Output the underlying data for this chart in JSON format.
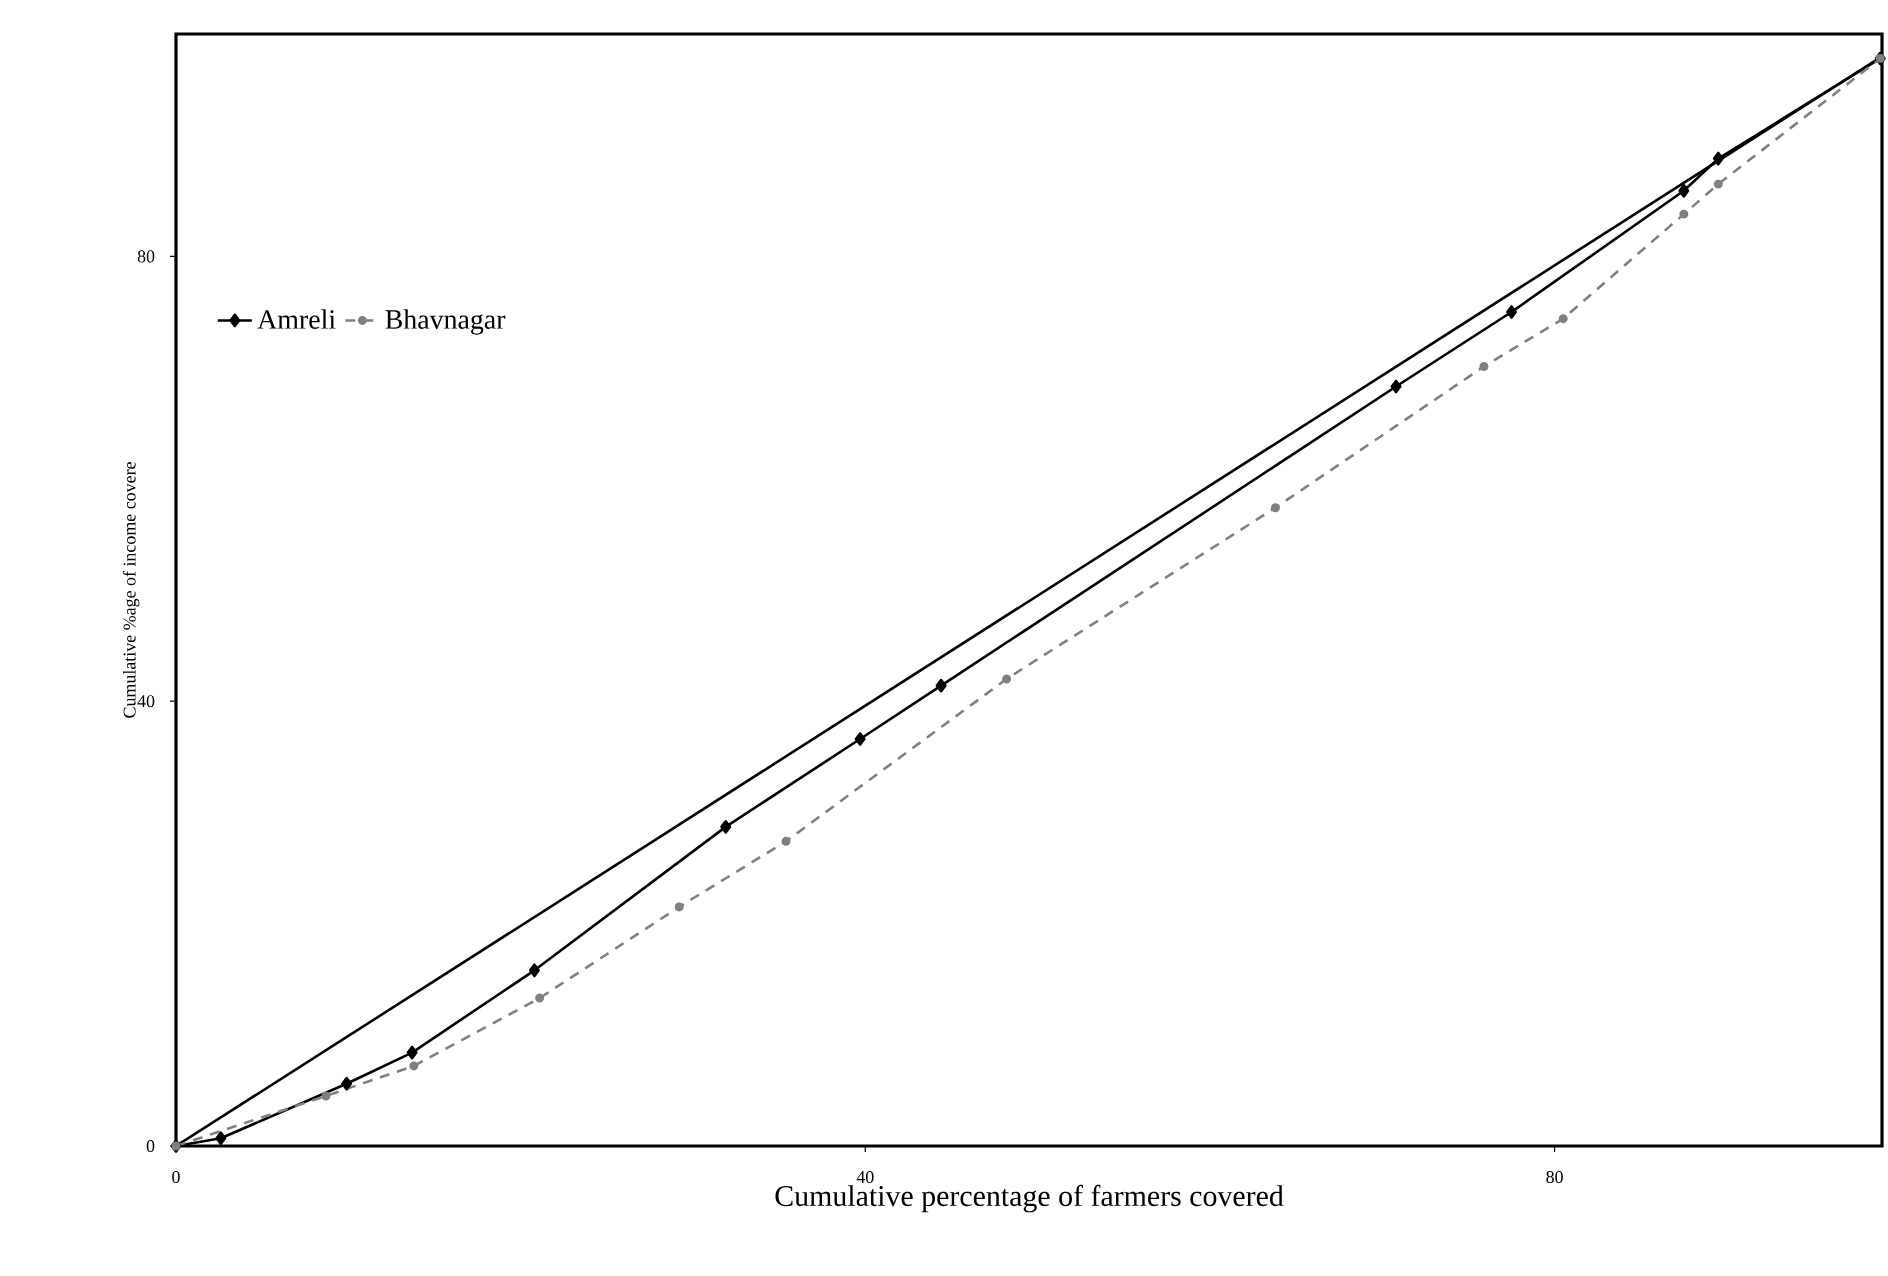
{
  "chart_data": {
    "type": "line",
    "xlabel": "Cumulative percentage of farmers covered",
    "ylabel": "Cumulative %age of income covere",
    "xlim": [
      0,
      99
    ],
    "ylim": [
      0,
      100
    ],
    "xticks": [
      0,
      40,
      80
    ],
    "yticks": [
      0,
      40,
      80
    ],
    "grid": false,
    "legend": "top left",
    "series": [
      {
        "color": "#000000",
        "line_style": "solid",
        "x": [
          0,
          99
        ],
        "values": [
          0,
          98
        ]
      },
      {
        "name": "Amreli",
        "color": "#000000",
        "marker": "diamond",
        "line_style": "solid",
        "x": [
          0,
          2.6,
          9.9,
          13.7,
          20.8,
          31.9,
          39.7,
          44.4,
          70.8,
          77.5,
          87.5,
          89.5,
          98.9
        ],
        "values": [
          0,
          0.7,
          5.6,
          8.4,
          15.8,
          28.7,
          36.6,
          41.4,
          68.3,
          75,
          85.9,
          88.8,
          97.8
        ]
      },
      {
        "name": "Bhavnagar",
        "color": "#808080",
        "marker": "circle",
        "line_style": "dashed",
        "x": [
          0,
          8.7,
          13.8,
          21.1,
          29.2,
          35.4,
          48.2,
          63.8,
          75.9,
          80.5,
          87.5,
          89.5,
          98.9
        ],
        "values": [
          0,
          4.5,
          7.2,
          13.3,
          21.5,
          27.4,
          42,
          57.4,
          70.1,
          74.4,
          83.8,
          86.5,
          97.8
        ]
      }
    ]
  }
}
